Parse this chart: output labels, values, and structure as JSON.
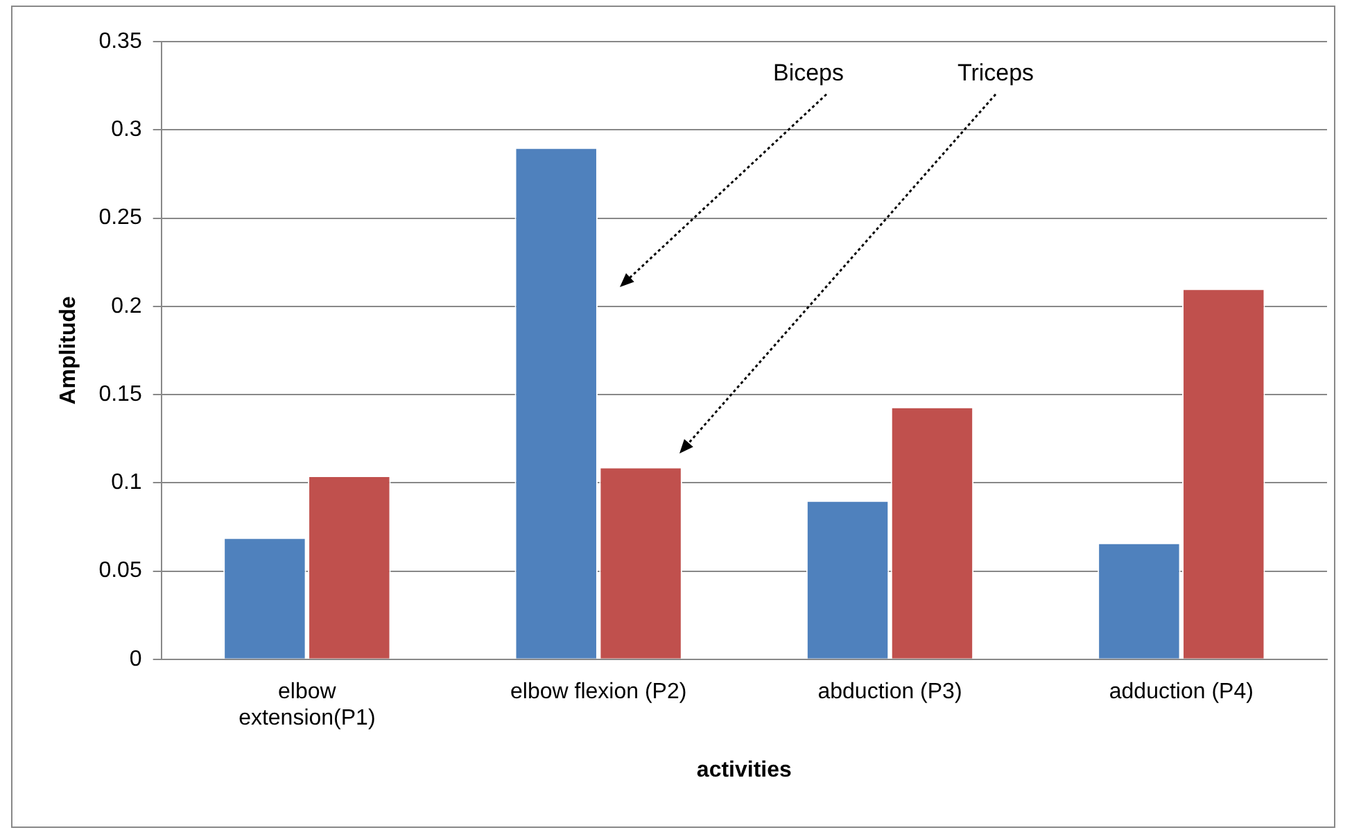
{
  "chart_data": {
    "type": "bar",
    "xlabel": "activities",
    "ylabel": "Amplitude",
    "categories": [
      "elbow extension(P1)",
      "elbow flexion (P2)",
      "abduction (P3)",
      "adduction (P4)"
    ],
    "series": [
      {
        "color": "#4f81bd",
        "values": [
          0.069,
          0.29,
          0.09,
          0.066
        ]
      },
      {
        "color": "#c0504d",
        "values": [
          0.104,
          0.109,
          0.143,
          0.21
        ]
      }
    ],
    "ylim": [
      0,
      0.35
    ],
    "yticks": [
      0,
      0.05,
      0.1,
      0.15,
      0.2,
      0.25,
      0.3,
      0.35
    ],
    "grid": "y",
    "legend": false,
    "annotations": [
      "Biceps",
      "Triceps"
    ]
  }
}
